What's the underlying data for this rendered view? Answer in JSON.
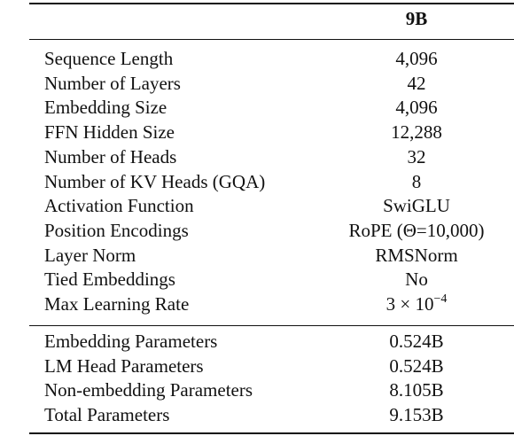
{
  "table": {
    "header": {
      "column": "9B"
    },
    "sections": [
      {
        "rows": [
          [
            "Sequence Length",
            "4,096"
          ],
          [
            "Number of Layers",
            "42"
          ],
          [
            "Embedding Size",
            "4,096"
          ],
          [
            "FFN Hidden Size",
            "12,288"
          ],
          [
            "Number of Heads",
            "32"
          ],
          [
            "Number of KV Heads (GQA)",
            "8"
          ],
          [
            "Activation Function",
            "SwiGLU"
          ],
          [
            "Position Encodings",
            "RoPE (Θ=10,000)"
          ],
          [
            "Layer Norm",
            "RMSNorm"
          ],
          [
            "Tied Embeddings",
            "No"
          ],
          [
            "Max Learning Rate",
            {
              "base": "3 × 10",
              "exponent": "−4"
            }
          ]
        ]
      },
      {
        "rows": [
          [
            "Embedding Parameters",
            "0.524B"
          ],
          [
            "LM Head Parameters",
            "0.524B"
          ],
          [
            "Non-embedding Parameters",
            "8.105B"
          ],
          [
            "Total Parameters",
            "9.153B"
          ]
        ]
      }
    ]
  }
}
